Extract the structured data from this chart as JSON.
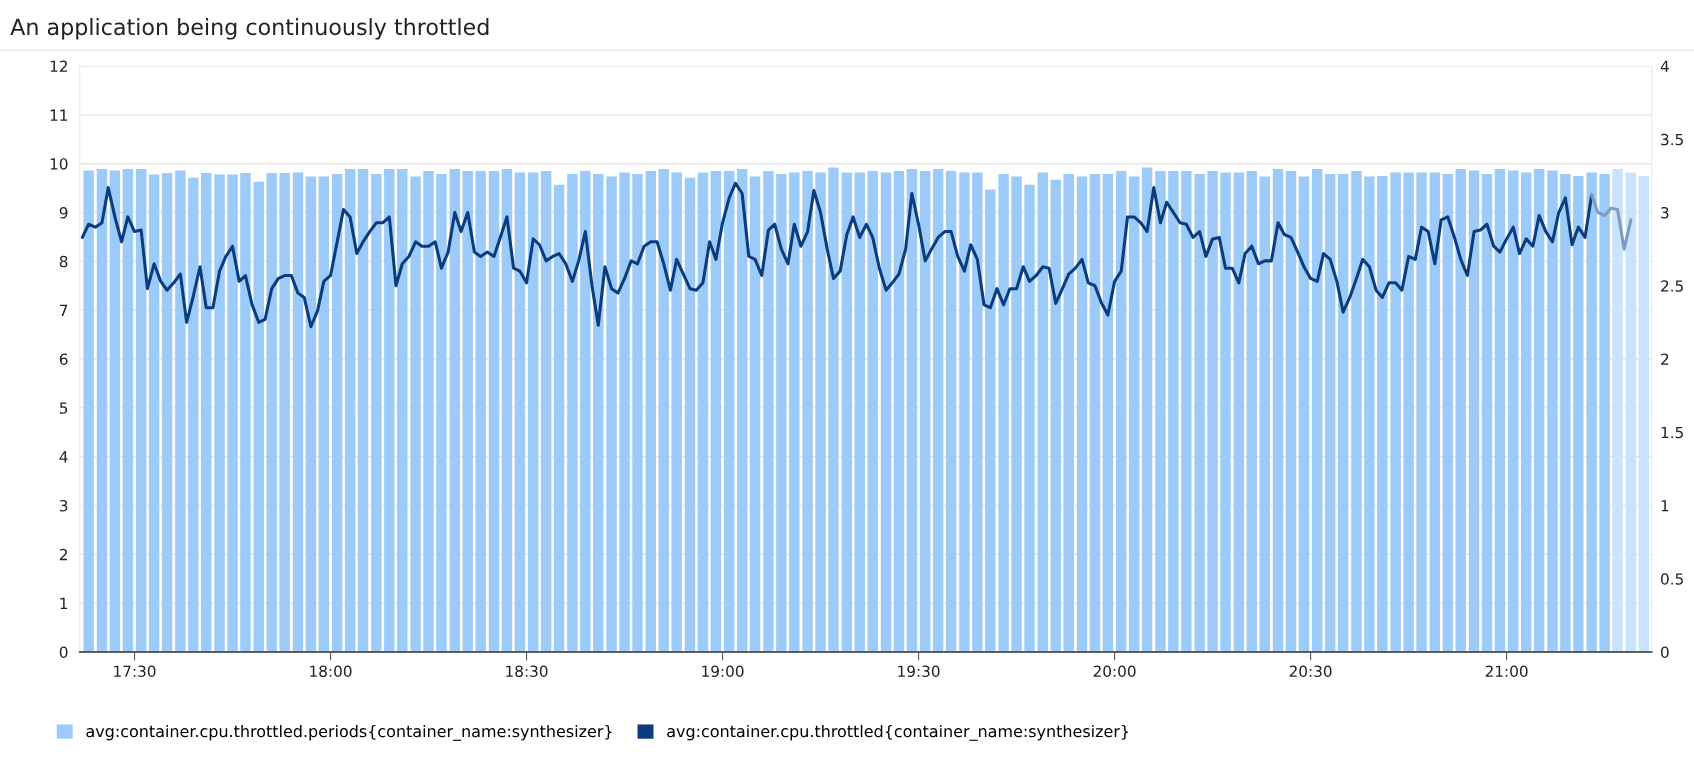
{
  "chart_data": {
    "type": "bar",
    "title": "An application being continuously throttled",
    "x": [
      17.383,
      17.417,
      17.45,
      17.483,
      17.517,
      17.55,
      17.583,
      17.617,
      17.65,
      17.683,
      17.717,
      17.75,
      17.783,
      17.817,
      17.85,
      17.883,
      17.917,
      17.95,
      17.983,
      18.017,
      18.05,
      18.083,
      18.117,
      18.15,
      18.183,
      18.217,
      18.25,
      18.283,
      18.317,
      18.35,
      18.383,
      18.417,
      18.45,
      18.483,
      18.517,
      18.55,
      18.583,
      18.617,
      18.65,
      18.683,
      18.717,
      18.75,
      18.783,
      18.817,
      18.85,
      18.883,
      18.917,
      18.95,
      18.983,
      19.017,
      19.05,
      19.083,
      19.117,
      19.15,
      19.183,
      19.217,
      19.25,
      19.283,
      19.317,
      19.35,
      19.383,
      19.417,
      19.45,
      19.483,
      19.517,
      19.55,
      19.583,
      19.617,
      19.65,
      19.683,
      19.717,
      19.75,
      19.783,
      19.817,
      19.85,
      19.883,
      19.917,
      19.95,
      19.983,
      20.017,
      20.05,
      20.083,
      20.117,
      20.15,
      20.183,
      20.217,
      20.25,
      20.283,
      20.317,
      20.35,
      20.383,
      20.417,
      20.45,
      20.483,
      20.517,
      20.55,
      20.583,
      20.617,
      20.65,
      20.683,
      20.717,
      20.75,
      20.783,
      20.817,
      20.85,
      20.883,
      20.917,
      20.95,
      20.983,
      21.017,
      21.05,
      21.083,
      21.117,
      21.15,
      21.183,
      21.217,
      21.25,
      21.283,
      21.317,
      21.35
    ],
    "series": [
      {
        "name": "avg:container.cpu.throttled.periods{container_name:synthesizer}",
        "color": "#9ccbfa",
        "values": [
          9.86,
          9.89,
          9.86,
          9.89,
          9.89,
          9.78,
          9.81,
          9.86,
          9.71,
          9.81,
          9.78,
          9.78,
          9.81,
          9.63,
          9.81,
          9.81,
          9.82,
          9.74,
          9.74,
          9.79,
          9.89,
          9.89,
          9.79,
          9.89,
          9.89,
          9.74,
          9.85,
          9.79,
          9.89,
          9.85,
          9.85,
          9.85,
          9.89,
          9.82,
          9.82,
          9.85,
          9.57,
          9.79,
          9.85,
          9.79,
          9.74,
          9.82,
          9.79,
          9.85,
          9.89,
          9.82,
          9.71,
          9.82,
          9.85,
          9.85,
          9.89,
          9.74,
          9.85,
          9.79,
          9.82,
          9.85,
          9.82,
          9.92,
          9.82,
          9.82,
          9.85,
          9.82,
          9.85,
          9.89,
          9.85,
          9.89,
          9.85,
          9.82,
          9.82,
          9.47,
          9.79,
          9.74,
          9.57,
          9.82,
          9.67,
          9.79,
          9.74,
          9.79,
          9.79,
          9.85,
          9.74,
          9.92,
          9.85,
          9.85,
          9.85,
          9.79,
          9.85,
          9.82,
          9.82,
          9.85,
          9.74,
          9.89,
          9.85,
          9.74,
          9.89,
          9.79,
          9.79,
          9.85,
          9.74,
          9.75,
          9.82,
          9.82,
          9.82,
          9.82,
          9.79,
          9.89,
          9.86,
          9.79,
          9.89,
          9.86,
          9.82,
          9.89,
          9.86,
          9.79,
          9.75,
          9.82,
          9.79,
          9.89,
          9.82,
          9.75
        ],
        "colors": [
          "#9ccbfa",
          "#9ccbfa",
          "#9ccbfa",
          "#9ccbfa",
          "#9ccbfa",
          "#9ccbfa",
          "#9ccbfa",
          "#9ccbfa",
          "#9ccbfa",
          "#9ccbfa",
          "#9ccbfa",
          "#9ccbfa",
          "#9ccbfa",
          "#9ccbfa",
          "#9ccbfa",
          "#9ccbfa",
          "#9ccbfa",
          "#9ccbfa",
          "#9ccbfa",
          "#9ccbfa",
          "#9ccbfa",
          "#9ccbfa",
          "#9ccbfa",
          "#9ccbfa",
          "#9ccbfa",
          "#9ccbfa",
          "#9ccbfa",
          "#9ccbfa",
          "#9ccbfa",
          "#9ccbfa",
          "#9ccbfa",
          "#9ccbfa",
          "#9ccbfa",
          "#9ccbfa",
          "#9ccbfa",
          "#9ccbfa",
          "#9ccbfa",
          "#9ccbfa",
          "#9ccbfa",
          "#9ccbfa",
          "#9ccbfa",
          "#9ccbfa",
          "#9ccbfa",
          "#9ccbfa",
          "#9ccbfa",
          "#9ccbfa",
          "#9ccbfa",
          "#9ccbfa",
          "#9ccbfa",
          "#9ccbfa",
          "#9ccbfa",
          "#9ccbfa",
          "#9ccbfa",
          "#9ccbfa",
          "#9ccbfa",
          "#9ccbfa",
          "#9ccbfa",
          "#9ccbfa",
          "#9ccbfa",
          "#9ccbfa",
          "#9ccbfa",
          "#9ccbfa",
          "#9ccbfa",
          "#9ccbfa",
          "#9ccbfa",
          "#9ccbfa",
          "#9ccbfa",
          "#9ccbfa",
          "#9ccbfa",
          "#9ccbfa",
          "#9ccbfa",
          "#9ccbfa",
          "#9ccbfa",
          "#9ccbfa",
          "#9ccbfa",
          "#9ccbfa",
          "#9ccbfa",
          "#9ccbfa",
          "#9ccbfa",
          "#9ccbfa",
          "#9ccbfa",
          "#9ccbfa",
          "#9ccbfa",
          "#9ccbfa",
          "#9ccbfa",
          "#9ccbfa",
          "#9ccbfa",
          "#9ccbfa",
          "#9ccbfa",
          "#9ccbfa",
          "#9ccbfa",
          "#9ccbfa",
          "#9ccbfa",
          "#9ccbfa",
          "#9ccbfa",
          "#9ccbfa",
          "#9ccbfa",
          "#9ccbfa",
          "#9ccbfa",
          "#9ccbfa",
          "#9ccbfa",
          "#9ccbfa",
          "#9ccbfa",
          "#9ccbfa",
          "#9ccbfa",
          "#9ccbfa",
          "#9ccbfa",
          "#9ccbfa",
          "#9ccbfa",
          "#9ccbfa",
          "#9ccbfa",
          "#9ccbfa",
          "#9ccbfa",
          "#9ccbfa",
          "#9ccbfa",
          "#9ccbfa",
          "#9ccbfa",
          "#c9e3fc",
          "#c9e3fc",
          "#c9e3fc"
        ]
      },
      {
        "type": "line",
        "axis": "y2",
        "name": "avg:container.cpu.throttled{container_name:synthesizer}",
        "color": "#0b3d7e",
        "x": [
          17.367,
          17.383,
          17.4,
          17.417,
          17.433,
          17.45,
          17.467,
          17.483,
          17.5,
          17.517,
          17.533,
          17.55,
          17.567,
          17.583,
          17.6,
          17.617,
          17.633,
          17.65,
          17.667,
          17.683,
          17.7,
          17.717,
          17.733,
          17.75,
          17.767,
          17.783,
          17.8,
          17.817,
          17.833,
          17.85,
          17.867,
          17.883,
          17.9,
          17.917,
          17.933,
          17.95,
          17.967,
          17.983,
          18,
          18.017,
          18.033,
          18.05,
          18.067,
          18.083,
          18.1,
          18.117,
          18.133,
          18.15,
          18.167,
          18.183,
          18.2,
          18.217,
          18.233,
          18.25,
          18.267,
          18.283,
          18.3,
          18.317,
          18.333,
          18.35,
          18.367,
          18.383,
          18.4,
          18.417,
          18.433,
          18.45,
          18.467,
          18.483,
          18.5,
          18.517,
          18.533,
          18.55,
          18.567,
          18.583,
          18.6,
          18.617,
          18.633,
          18.65,
          18.667,
          18.683,
          18.7,
          18.717,
          18.733,
          18.75,
          18.767,
          18.783,
          18.8,
          18.817,
          18.833,
          18.85,
          18.867,
          18.883,
          18.9,
          18.917,
          18.933,
          18.95,
          18.967,
          18.983,
          19,
          19.017,
          19.033,
          19.05,
          19.067,
          19.083,
          19.1,
          19.117,
          19.133,
          19.15,
          19.167,
          19.183,
          19.2,
          19.217,
          19.233,
          19.25,
          19.267,
          19.283,
          19.3,
          19.317,
          19.333,
          19.35,
          19.367,
          19.383,
          19.4,
          19.417,
          19.433,
          19.45,
          19.467,
          19.483,
          19.5,
          19.517,
          19.533,
          19.55,
          19.567,
          19.583,
          19.6,
          19.617,
          19.633,
          19.65,
          19.667,
          19.683,
          19.7,
          19.717,
          19.733,
          19.75,
          19.767,
          19.783,
          19.8,
          19.817,
          19.833,
          19.85,
          19.867,
          19.883,
          19.9,
          19.917,
          19.933,
          19.95,
          19.967,
          19.983,
          20,
          20.017,
          20.033,
          20.05,
          20.067,
          20.083,
          20.1,
          20.117,
          20.133,
          20.15,
          20.167,
          20.183,
          20.2,
          20.217,
          20.233,
          20.25,
          20.267,
          20.283,
          20.3,
          20.317,
          20.333,
          20.35,
          20.367,
          20.383,
          20.4,
          20.417,
          20.433,
          20.45,
          20.467,
          20.483,
          20.5,
          20.517,
          20.533,
          20.55,
          20.567,
          20.583,
          20.6,
          20.617,
          20.633,
          20.65,
          20.667,
          20.683,
          20.7,
          20.717,
          20.733,
          20.75,
          20.767,
          20.783,
          20.8,
          20.817,
          20.833,
          20.85,
          20.867,
          20.883,
          20.9,
          20.917,
          20.933,
          20.95,
          20.967,
          20.983,
          21,
          21.017,
          21.033,
          21.05,
          21.067,
          21.083,
          21.1,
          21.117,
          21.133,
          21.15,
          21.167,
          21.183,
          21.2,
          21.217
        ],
        "values": [
          2.83,
          2.92,
          2.9,
          2.93,
          3.17,
          2.97,
          2.8,
          2.97,
          2.87,
          2.88,
          2.48,
          2.65,
          2.53,
          2.47,
          2.52,
          2.58,
          2.25,
          2.43,
          2.63,
          2.35,
          2.35,
          2.6,
          2.7,
          2.77,
          2.53,
          2.57,
          2.37,
          2.25,
          2.27,
          2.48,
          2.55,
          2.57,
          2.57,
          2.45,
          2.42,
          2.22,
          2.33,
          2.53,
          2.57,
          2.8,
          3.02,
          2.97,
          2.72,
          2.8,
          2.87,
          2.93,
          2.93,
          2.97,
          2.5,
          2.65,
          2.7,
          2.8,
          2.77,
          2.77,
          2.8,
          2.62,
          2.73,
          3.0,
          2.87,
          3.0,
          2.73,
          2.7,
          2.73,
          2.7,
          2.83,
          2.97,
          2.62,
          2.6,
          2.52,
          2.82,
          2.78,
          2.67,
          2.7,
          2.72,
          2.65,
          2.53,
          2.67,
          2.87,
          2.5,
          2.23,
          2.63,
          2.48,
          2.45,
          2.55,
          2.67,
          2.65,
          2.77,
          2.8,
          2.8,
          2.65,
          2.47,
          2.68,
          2.58,
          2.48,
          2.47,
          2.52,
          2.8,
          2.68,
          2.93,
          3.1,
          3.2,
          3.13,
          2.7,
          2.68,
          2.57,
          2.88,
          2.92,
          2.75,
          2.65,
          2.92,
          2.77,
          2.87,
          3.15,
          3.0,
          2.75,
          2.55,
          2.6,
          2.85,
          2.97,
          2.83,
          2.92,
          2.83,
          2.62,
          2.47,
          2.52,
          2.58,
          2.75,
          3.13,
          2.92,
          2.67,
          2.75,
          2.83,
          2.87,
          2.87,
          2.7,
          2.6,
          2.78,
          2.68,
          2.37,
          2.35,
          2.48,
          2.37,
          2.48,
          2.48,
          2.63,
          2.53,
          2.57,
          2.63,
          2.62,
          2.38,
          2.48,
          2.58,
          2.62,
          2.68,
          2.52,
          2.5,
          2.38,
          2.3,
          2.53,
          2.6,
          2.97,
          2.97,
          2.93,
          2.87,
          3.17,
          2.93,
          3.07,
          3.0,
          2.93,
          2.92,
          2.83,
          2.87,
          2.7,
          2.82,
          2.83,
          2.62,
          2.62,
          2.52,
          2.72,
          2.77,
          2.65,
          2.67,
          2.67,
          2.93,
          2.85,
          2.83,
          2.73,
          2.63,
          2.55,
          2.53,
          2.72,
          2.68,
          2.53,
          2.32,
          2.42,
          2.55,
          2.68,
          2.63,
          2.47,
          2.42,
          2.52,
          2.52,
          2.47,
          2.7,
          2.68,
          2.9,
          2.87,
          2.65,
          2.95,
          2.97,
          2.83,
          2.68,
          2.57,
          2.87,
          2.88,
          2.92,
          2.77,
          2.73,
          2.82,
          2.9,
          2.72,
          2.82,
          2.77,
          2.98,
          2.87,
          2.8,
          3.0,
          3.1,
          2.78,
          2.9,
          2.83,
          3.12
        ]
      },
      {
        "type": "line",
        "axis": "y2",
        "color": "#7f9cc0",
        "x": [
          21.217,
          21.233,
          21.25,
          21.267,
          21.283,
          21.3,
          21.317
        ],
        "values": [
          3.12,
          3.0,
          2.98,
          3.03,
          3.02,
          2.75,
          2.95
        ]
      }
    ],
    "xlim": [
      17.36,
      21.37
    ],
    "xticks": [
      {
        "value": 17.5,
        "label": "17:30"
      },
      {
        "value": 18,
        "label": "18:00"
      },
      {
        "value": 18.5,
        "label": "18:30"
      },
      {
        "value": 19,
        "label": "19:00"
      },
      {
        "value": 19.5,
        "label": "19:30"
      },
      {
        "value": 20,
        "label": "20:00"
      },
      {
        "value": 20.5,
        "label": "20:30"
      },
      {
        "value": 21,
        "label": "21:00"
      }
    ],
    "ylim": [
      0,
      12
    ],
    "yticks": [
      0,
      1,
      2,
      3,
      4,
      5,
      6,
      7,
      8,
      9,
      10,
      11,
      12
    ],
    "y2lim": [
      0,
      4
    ],
    "y2ticks": [
      0,
      0.5,
      1,
      1.5,
      2,
      2.5,
      3,
      3.5,
      4
    ],
    "grid": "y",
    "legend": "bottom left"
  }
}
